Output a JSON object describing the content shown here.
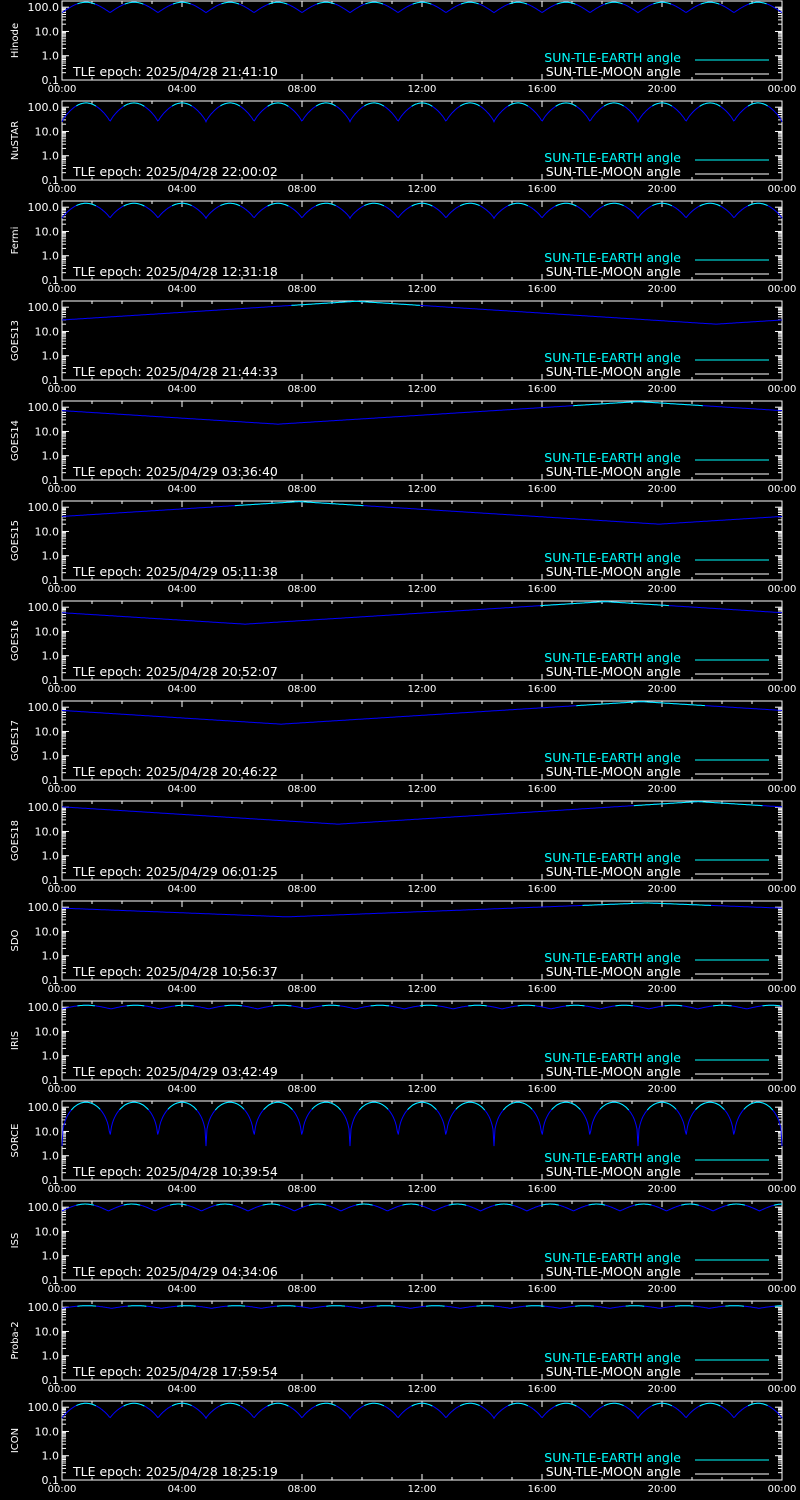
{
  "colors": {
    "background": "#000000",
    "axes": "#ffffff",
    "earth_curve": "#0000ff",
    "earth_curve_upper": "#00ffff",
    "legend_earth": "#00ffff",
    "legend_moon": "#ffffff"
  },
  "legend": {
    "earth": "SUN-TLE-EARTH angle",
    "moon": "SUN-TLE-MOON angle"
  },
  "x_tick_labels": [
    "00:00",
    "04:00",
    "08:00",
    "12:00",
    "16:00",
    "20:00",
    "00:00"
  ],
  "y_tick_labels": [
    "100.0",
    "10.0",
    "1.0",
    "0.1"
  ],
  "chart_data": [
    {
      "type": "line",
      "ylabel": "Hinode",
      "annotation": "TLE epoch: 2025/04/28 21:41:10",
      "x_range_hours": [
        0,
        24
      ],
      "y_scale": "log",
      "ylim": [
        0.1,
        180
      ],
      "curve": {
        "kind": "periodic",
        "period_hours": 1.6,
        "min": 60,
        "max": 160,
        "sharpness": 1.0
      }
    },
    {
      "type": "line",
      "ylabel": "NuSTAR",
      "annotation": "TLE epoch: 2025/04/28 22:00:02",
      "x_range_hours": [
        0,
        24
      ],
      "y_scale": "log",
      "ylim": [
        0.1,
        180
      ],
      "curve": {
        "kind": "periodic",
        "period_hours": 1.6,
        "min": 25,
        "max": 150,
        "sharpness": 0.8
      }
    },
    {
      "type": "line",
      "ylabel": "Fermi",
      "annotation": "TLE epoch: 2025/04/28 12:31:18",
      "x_range_hours": [
        0,
        24
      ],
      "y_scale": "log",
      "ylim": [
        0.1,
        180
      ],
      "curve": {
        "kind": "periodic",
        "period_hours": 1.6,
        "min": 35,
        "max": 145,
        "sharpness": 0.8
      }
    },
    {
      "type": "line",
      "ylabel": "GOES13",
      "annotation": "TLE epoch: 2025/04/28 21:44:33",
      "x_range_hours": [
        0,
        24
      ],
      "y_scale": "log",
      "ylim": [
        0.1,
        180
      ],
      "curve": {
        "kind": "daily",
        "min_hour": 21.8,
        "min": 20,
        "max": 175
      }
    },
    {
      "type": "line",
      "ylabel": "GOES14",
      "annotation": "TLE epoch: 2025/04/29 03:36:40",
      "x_range_hours": [
        0,
        24
      ],
      "y_scale": "log",
      "ylim": [
        0.1,
        180
      ],
      "curve": {
        "kind": "daily",
        "min_hour": 7.2,
        "min": 20,
        "max": 170
      }
    },
    {
      "type": "line",
      "ylabel": "GOES15",
      "annotation": "TLE epoch: 2025/04/29 05:11:38",
      "x_range_hours": [
        0,
        24
      ],
      "y_scale": "log",
      "ylim": [
        0.1,
        180
      ],
      "curve": {
        "kind": "daily",
        "min_hour": 19.9,
        "min": 20,
        "max": 170
      }
    },
    {
      "type": "line",
      "ylabel": "GOES16",
      "annotation": "TLE epoch: 2025/04/28 20:52:07",
      "x_range_hours": [
        0,
        24
      ],
      "y_scale": "log",
      "ylim": [
        0.1,
        180
      ],
      "curve": {
        "kind": "daily",
        "min_hour": 6.1,
        "min": 20,
        "max": 170
      }
    },
    {
      "type": "line",
      "ylabel": "GOES17",
      "annotation": "TLE epoch: 2025/04/28 20:46:22",
      "x_range_hours": [
        0,
        24
      ],
      "y_scale": "log",
      "ylim": [
        0.1,
        180
      ],
      "curve": {
        "kind": "daily",
        "min_hour": 7.3,
        "min": 20,
        "max": 170
      }
    },
    {
      "type": "line",
      "ylabel": "GOES18",
      "annotation": "TLE epoch: 2025/04/29 06:01:25",
      "x_range_hours": [
        0,
        24
      ],
      "y_scale": "log",
      "ylim": [
        0.1,
        180
      ],
      "curve": {
        "kind": "daily",
        "min_hour": 9.2,
        "min": 20,
        "max": 170
      }
    },
    {
      "type": "line",
      "ylabel": "SDO",
      "annotation": "TLE epoch: 2025/04/28 10:56:37",
      "x_range_hours": [
        0,
        24
      ],
      "y_scale": "log",
      "ylim": [
        0.1,
        180
      ],
      "curve": {
        "kind": "daily",
        "min_hour": 7.5,
        "min": 40,
        "max": 150
      }
    },
    {
      "type": "line",
      "ylabel": "IRIS",
      "annotation": "TLE epoch: 2025/04/29 03:42:49",
      "x_range_hours": [
        0,
        24
      ],
      "y_scale": "log",
      "ylim": [
        0.1,
        180
      ],
      "curve": {
        "kind": "periodic",
        "period_hours": 1.63,
        "min": 85,
        "max": 120,
        "sharpness": 1.0
      }
    },
    {
      "type": "line",
      "ylabel": "SORCE",
      "annotation": "TLE epoch: 2025/04/28 10:39:54",
      "x_range_hours": [
        0,
        24
      ],
      "y_scale": "log",
      "ylim": [
        0.1,
        180
      ],
      "curve": {
        "kind": "periodic",
        "period_hours": 1.6,
        "min": 2.5,
        "max": 160,
        "sharpness": 0.35
      }
    },
    {
      "type": "line",
      "ylabel": "ISS",
      "annotation": "TLE epoch: 2025/04/29 04:34:06",
      "x_range_hours": [
        0,
        24
      ],
      "y_scale": "log",
      "ylim": [
        0.1,
        180
      ],
      "curve": {
        "kind": "periodic",
        "period_hours": 1.55,
        "min": 70,
        "max": 135,
        "sharpness": 1.0
      }
    },
    {
      "type": "line",
      "ylabel": "Proba-2",
      "annotation": "TLE epoch: 2025/04/28 17:59:54",
      "x_range_hours": [
        0,
        24
      ],
      "y_scale": "log",
      "ylim": [
        0.1,
        180
      ],
      "curve": {
        "kind": "periodic",
        "period_hours": 1.66,
        "min": 90,
        "max": 115,
        "sharpness": 1.0
      }
    },
    {
      "type": "line",
      "ylabel": "ICON",
      "annotation": "TLE epoch: 2025/04/28 18:25:19",
      "x_range_hours": [
        0,
        24
      ],
      "y_scale": "log",
      "ylim": [
        0.1,
        180
      ],
      "curve": {
        "kind": "periodic",
        "period_hours": 1.6,
        "min": 35,
        "max": 145,
        "sharpness": 0.8
      }
    }
  ]
}
